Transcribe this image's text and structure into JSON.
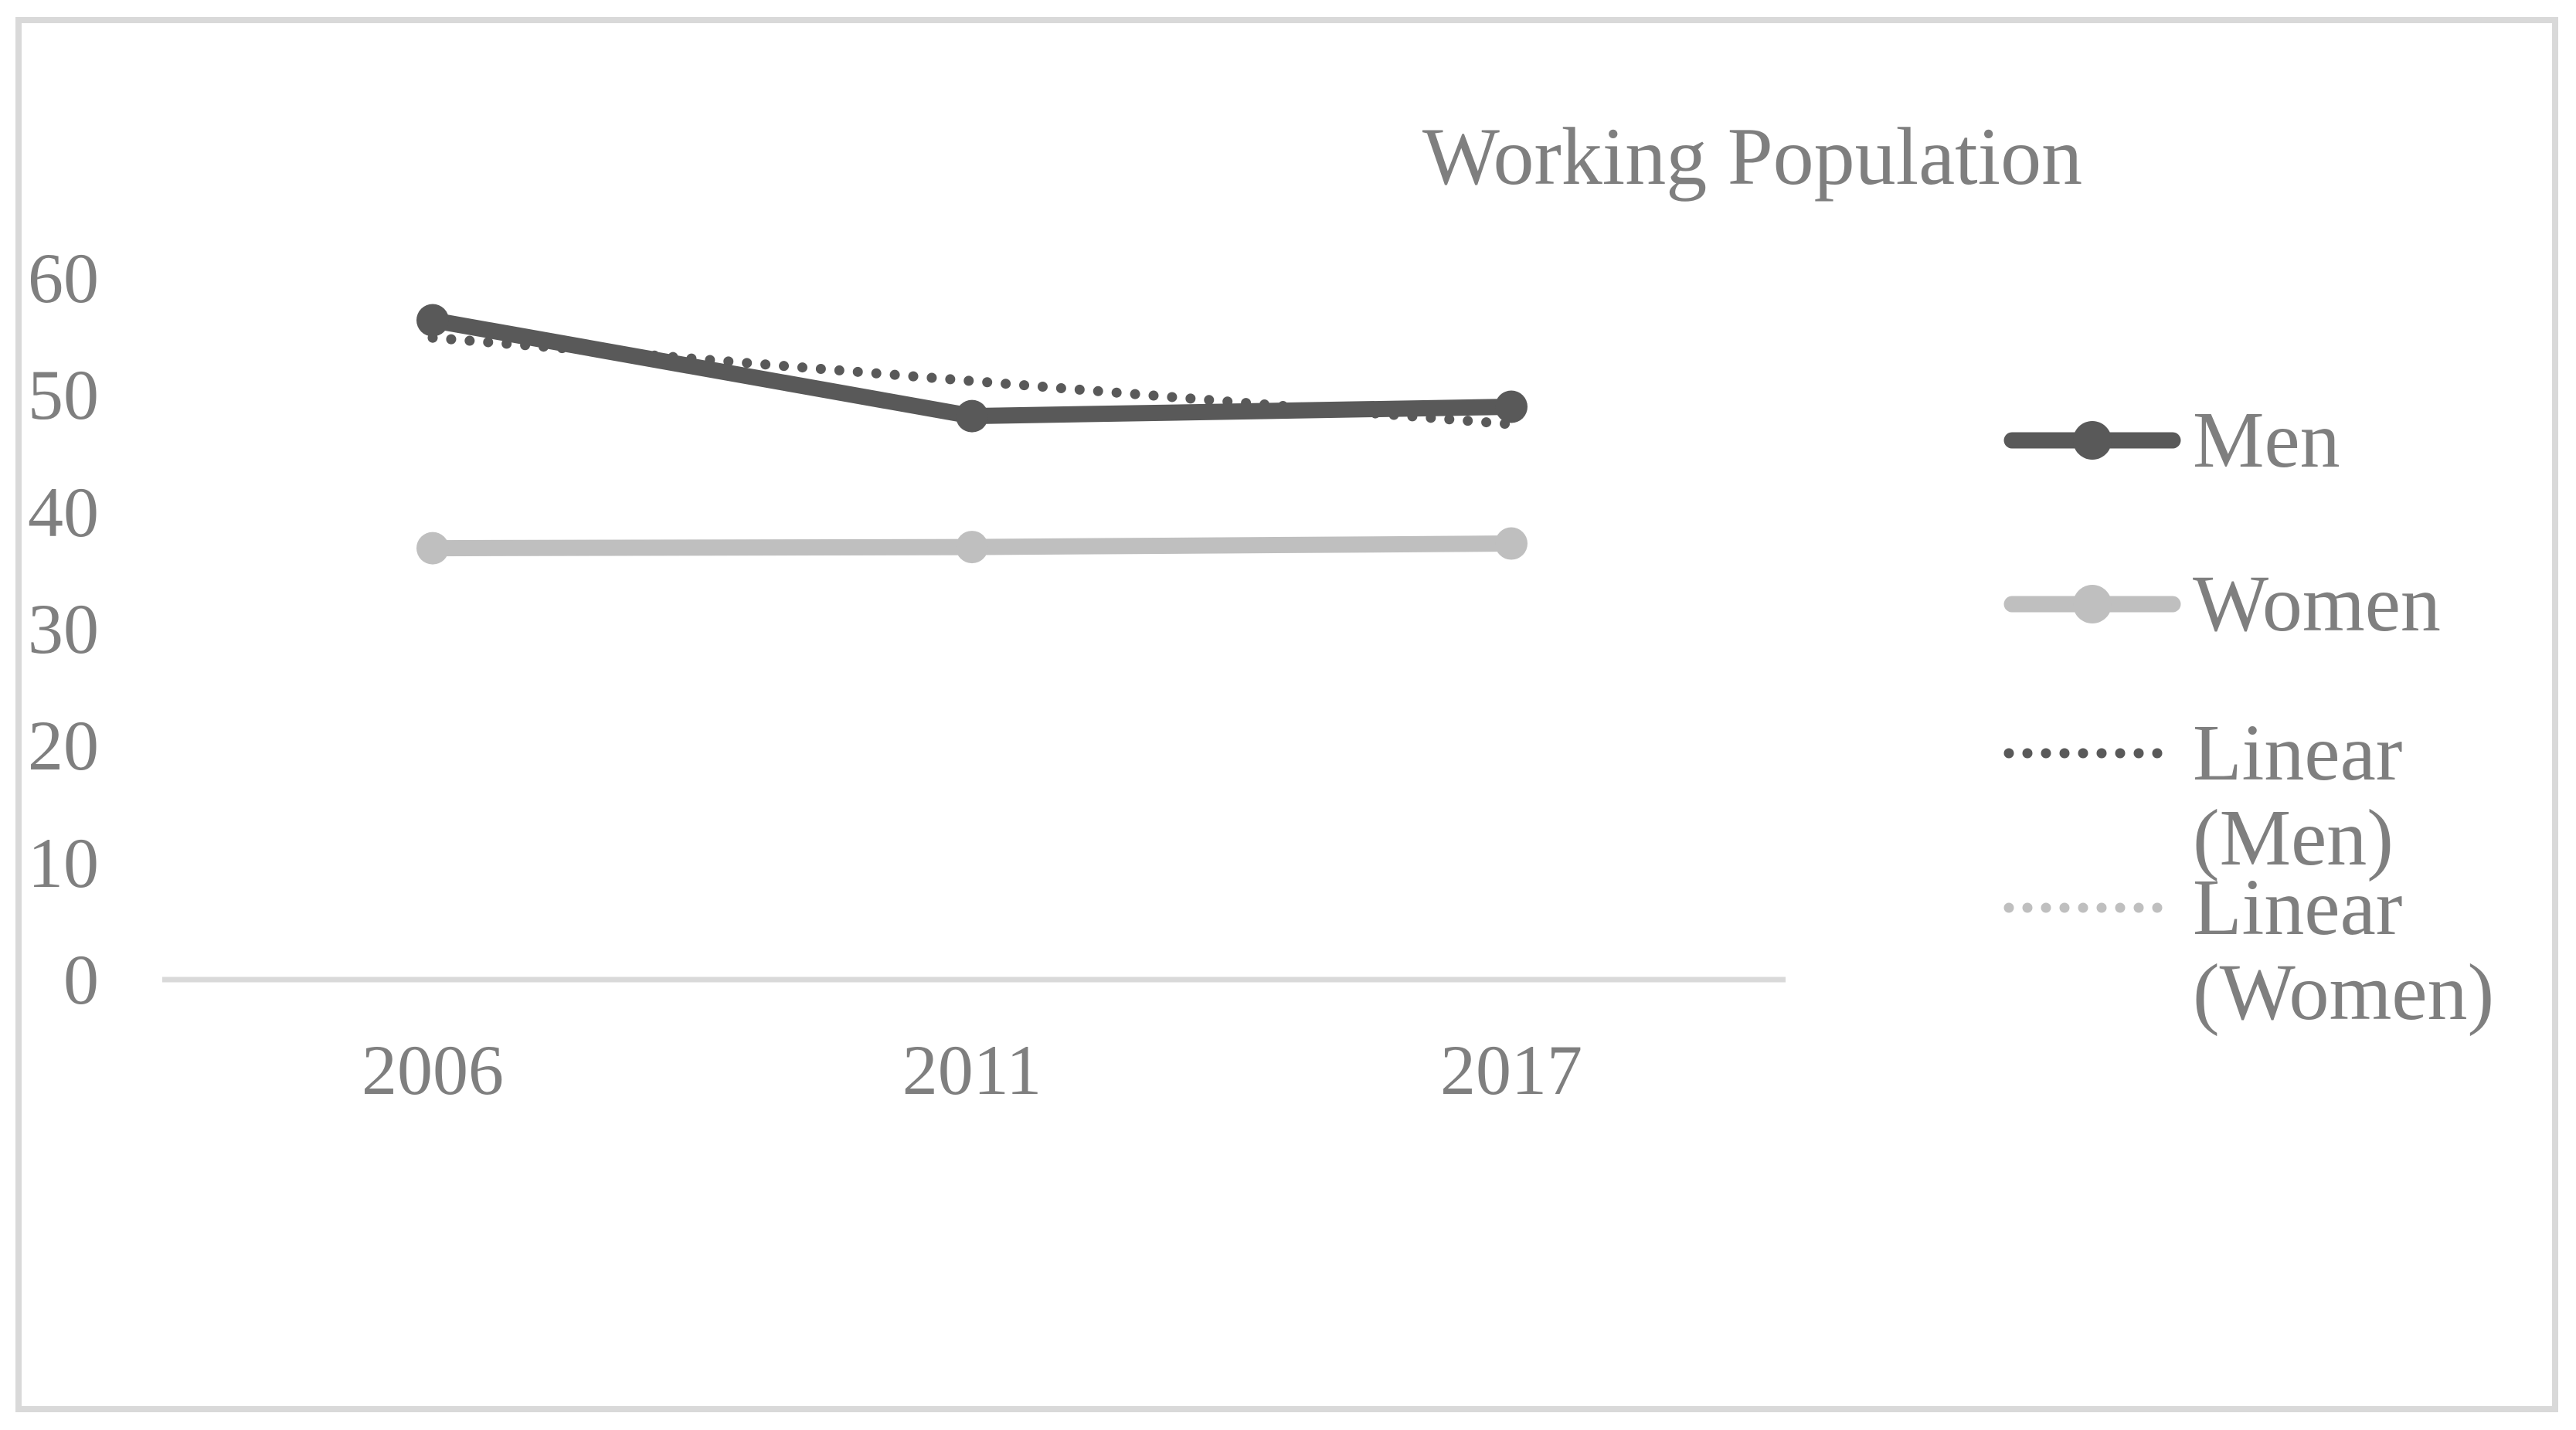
{
  "chart_data": {
    "type": "line",
    "title": "Working Population",
    "categories": [
      "2006",
      "2011",
      "2017"
    ],
    "series": [
      {
        "name": "Men",
        "color": "men",
        "values": [
          56.4,
          48.2,
          49.0
        ]
      },
      {
        "name": "Women",
        "color": "women",
        "values": [
          36.9,
          37.0,
          37.3
        ]
      }
    ],
    "trendlines": [
      {
        "name": "Linear (Men)",
        "color": "men",
        "start": 54.9,
        "end": 47.5
      },
      {
        "name": "Linear (Women)",
        "color": "women",
        "start": 36.9,
        "end": 37.3
      }
    ],
    "yticks": [
      "60",
      "50",
      "40",
      "30",
      "20",
      "10",
      "0"
    ],
    "ylim": [
      0,
      65
    ],
    "grid": false,
    "legend_position": "right",
    "colors": {
      "men": "#595959",
      "women": "#bfbfbf",
      "axis": "#d9d9d9",
      "text": "#7f7f7f",
      "border": "#d9d9d9"
    }
  },
  "legend": {
    "items": [
      {
        "label": "Men",
        "style": "solid",
        "color": "men"
      },
      {
        "label": "Women",
        "style": "solid",
        "color": "women"
      },
      {
        "label": "Linear (Men)",
        "style": "dotted",
        "color": "men"
      },
      {
        "label": "Linear (Women)",
        "style": "dotted",
        "color": "women"
      }
    ]
  }
}
